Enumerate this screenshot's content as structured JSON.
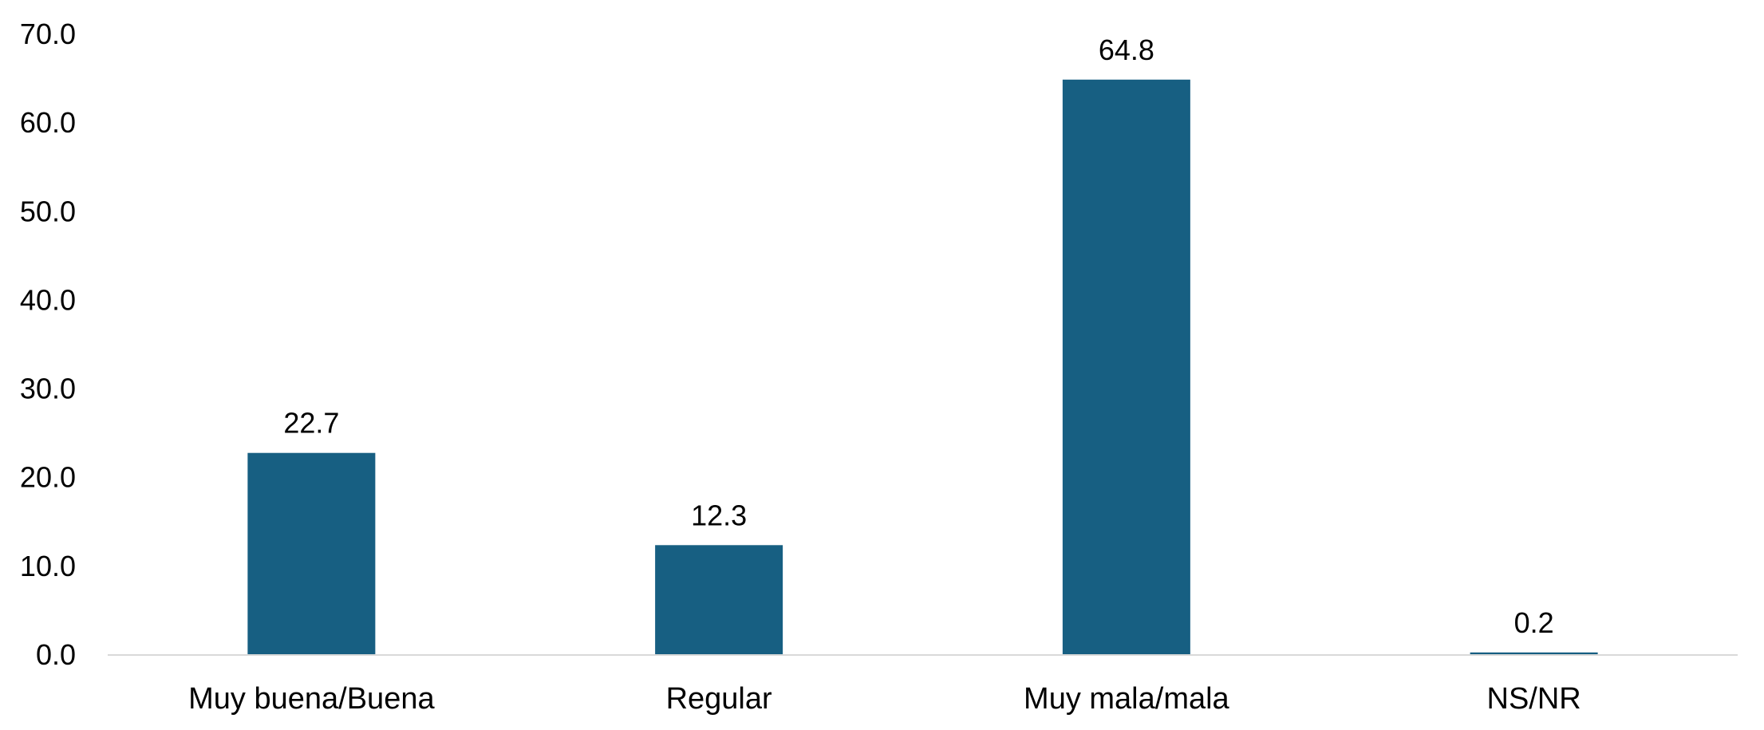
{
  "chart_data": {
    "type": "bar",
    "categories": [
      "Muy buena/Buena",
      "Regular",
      "Muy mala/mala",
      "NS/NR"
    ],
    "values": [
      22.7,
      12.3,
      64.8,
      0.2
    ],
    "data_labels": [
      "22.7",
      "12.3",
      "64.8",
      "0.2"
    ],
    "title": "",
    "xlabel": "",
    "ylabel": "",
    "ylim": [
      0,
      70
    ],
    "yticks": [
      "0.0",
      "10.0",
      "20.0",
      "30.0",
      "40.0",
      "50.0",
      "60.0",
      "70.0"
    ],
    "grid": false,
    "legend": "none",
    "colors": {
      "bar": "#175F82",
      "axis": "#D9D9D9"
    }
  }
}
